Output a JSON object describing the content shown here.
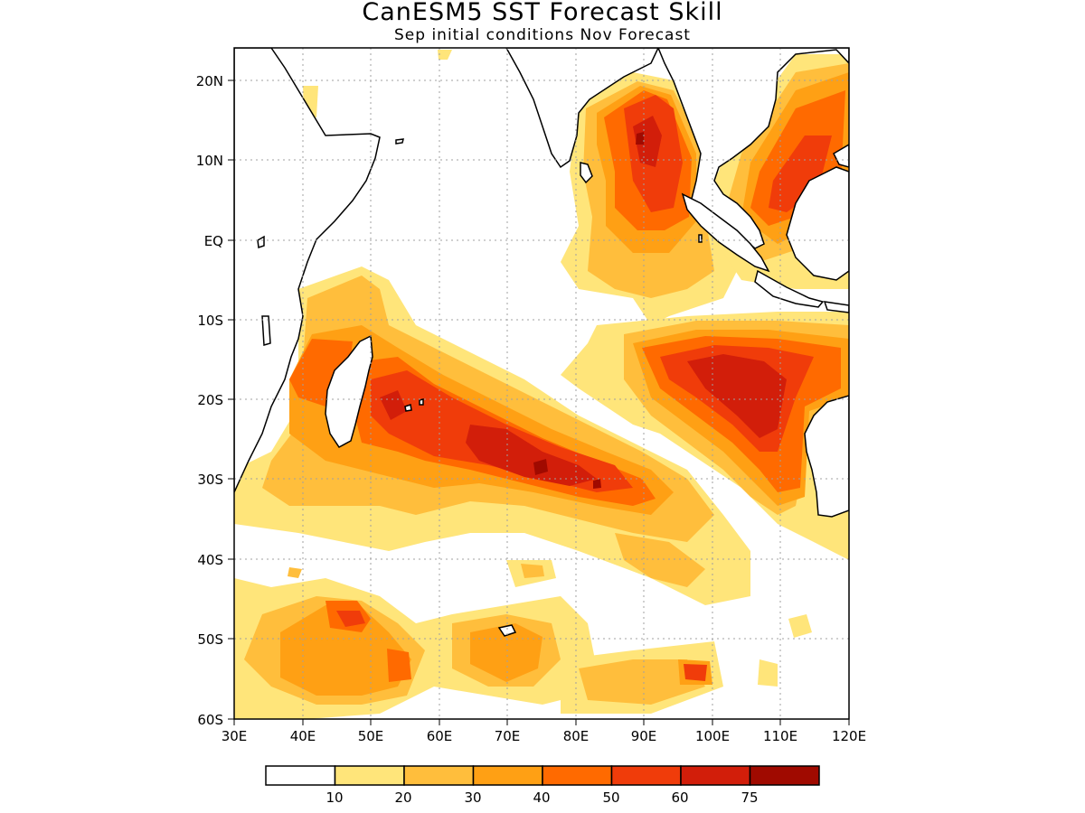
{
  "title": "CanESM5 SST Forecast Skill",
  "subtitle": "Sep initial conditions  Nov Forecast",
  "map": {
    "type": "heatmap",
    "region": "Indian Ocean",
    "longitude_range": [
      30,
      120
    ],
    "latitude_range": [
      -60,
      24
    ],
    "longitude_ticks": [
      "30E",
      "40E",
      "50E",
      "60E",
      "70E",
      "80E",
      "90E",
      "100E",
      "110E",
      "120E"
    ],
    "latitude_ticks": [
      "20N",
      "10N",
      "EQ",
      "10S",
      "20S",
      "30S",
      "40S",
      "50S",
      "60S"
    ],
    "grid": "dotted",
    "coastlines": true
  },
  "colorbar": {
    "levels": [
      "10",
      "20",
      "30",
      "40",
      "50",
      "60",
      "75"
    ],
    "colors": [
      "#ffffff",
      "#ffe57a",
      "#ffbe3c",
      "#ffa014",
      "#ff6a00",
      "#f03c0a",
      "#d21e0a",
      "#a00a00"
    ]
  },
  "colors": {
    "land": "#ffffff",
    "coastline": "#000000",
    "grid": "#a0a0a0"
  }
}
